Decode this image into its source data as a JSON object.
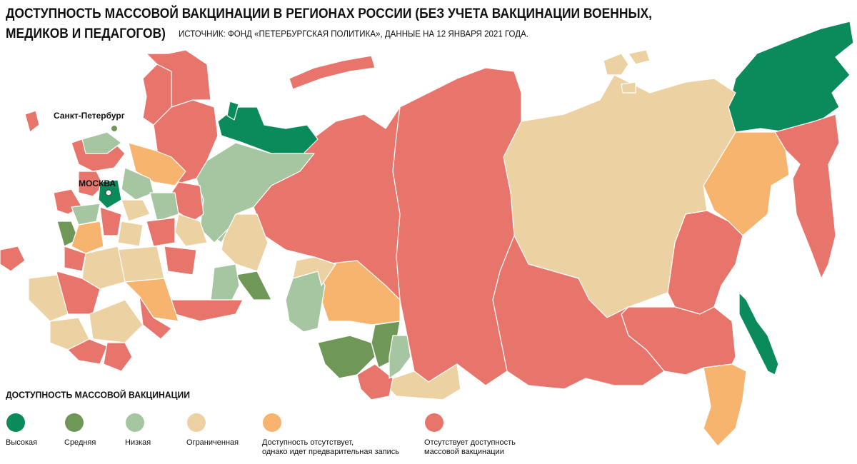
{
  "header": {
    "title_lines": [
      "ДОСТУПНОСТЬ МАССОВОЙ ВАКЦИНАЦИИ В РЕГИОНАХ РОССИИ (БЕЗ УЧЕТА ВАКЦИНАЦИИ ВОЕННЫХ,",
      "МЕДИКОВ И ПЕДАГОГОВ)"
    ],
    "source": "ИСТОЧНИК: ФОНД «ПЕТЕРБУРГСКАЯ ПОЛИТИКА», ДАННЫЕ НА 12 ЯНВАРЯ 2021 ГОДА."
  },
  "map_labels": {
    "saint_petersburg": "Санкт-Петербург",
    "moscow": "МОСКВА"
  },
  "legend": {
    "title": "ДОСТУПНОСТЬ МАССОВОЙ ВАКЦИНАЦИИ",
    "items": [
      {
        "label_lines": [
          "Высокая"
        ],
        "color": "#0b8a5b"
      },
      {
        "label_lines": [
          "Средняя"
        ],
        "color": "#6f9858"
      },
      {
        "label_lines": [
          "Низкая"
        ],
        "color": "#a5c6a1"
      },
      {
        "label_lines": [
          "Ограниченная"
        ],
        "color": "#ecd1a3"
      },
      {
        "label_lines": [
          "Доступность отсутствует,",
          "однако идет предварительная запись"
        ],
        "color": "#f6b46f"
      },
      {
        "label_lines": [
          "Отсутствует доступность",
          "массовой вакцинации"
        ],
        "color": "#e8756c"
      }
    ]
  }
}
